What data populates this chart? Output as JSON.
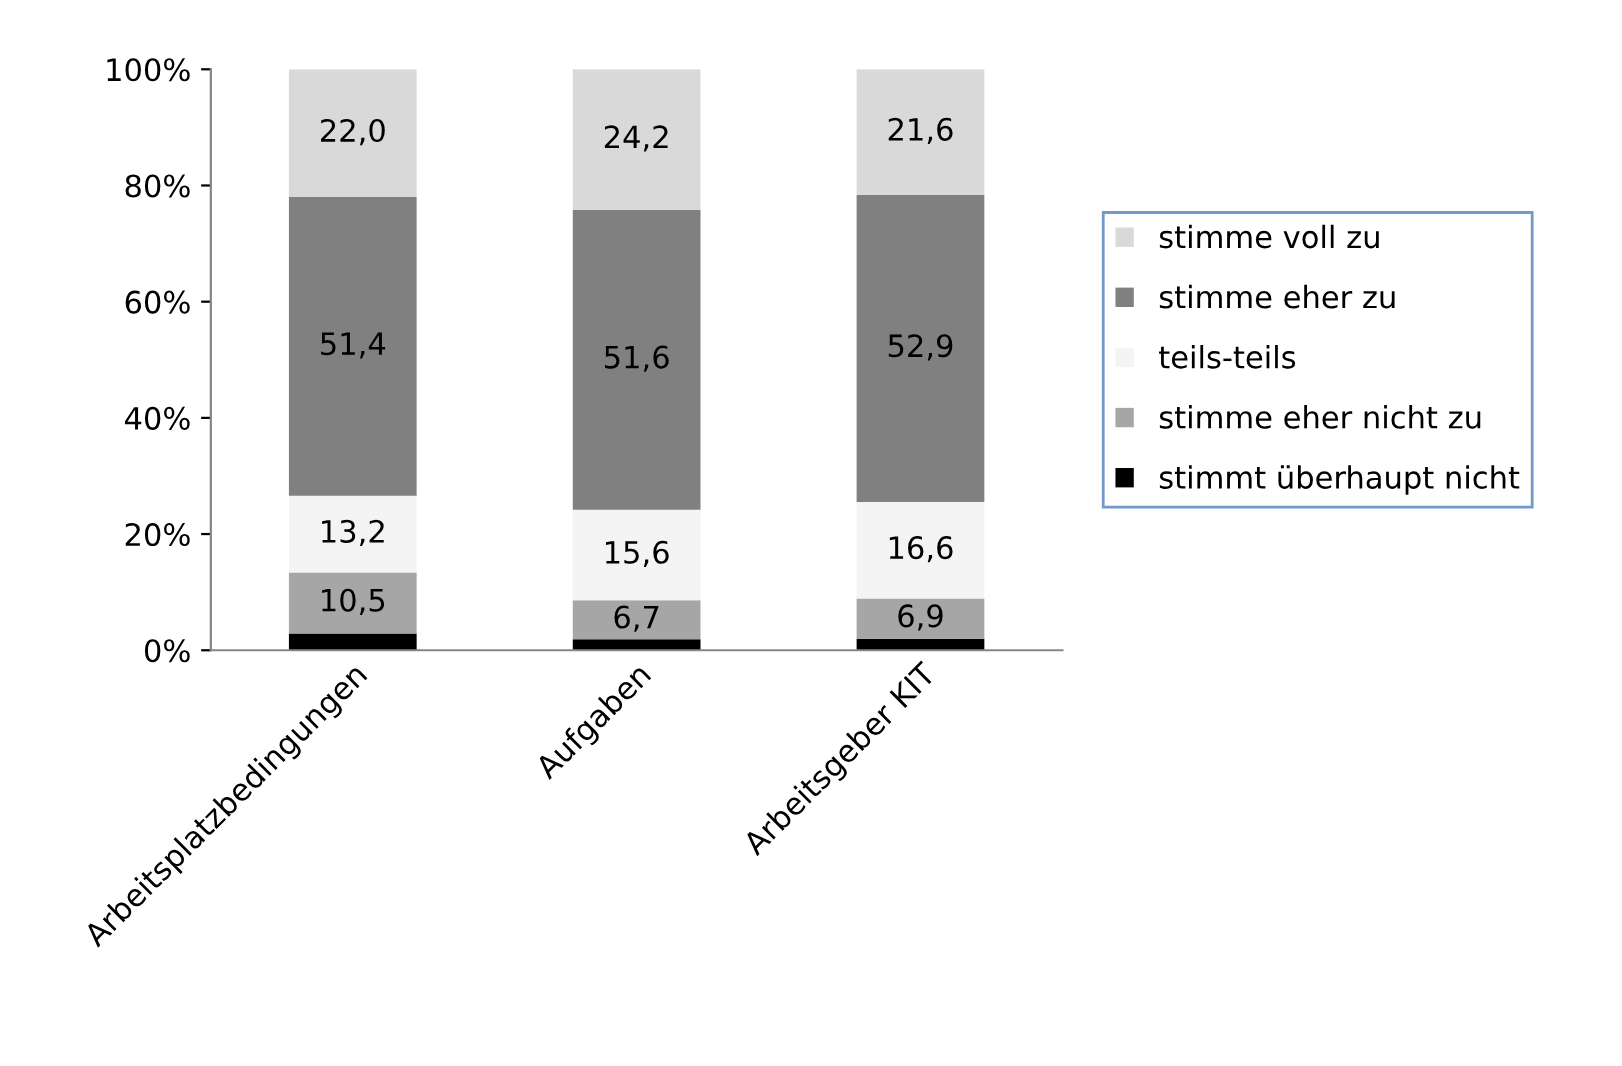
{
  "chart_data": {
    "type": "bar",
    "stacked": true,
    "categories": [
      "Arbeitsplatzbedingungen",
      "Aufgaben",
      "Arbeitsgeber KIT"
    ],
    "series": [
      {
        "name": "stimmt überhaupt nicht",
        "color": "#000000",
        "values": [
          2.9,
          1.9,
          2.0
        ],
        "value_labels": [
          null,
          null,
          null
        ]
      },
      {
        "name": "stimme eher nicht zu",
        "color": "#a6a6a6",
        "values": [
          10.5,
          6.7,
          6.9
        ],
        "value_labels": [
          "10,5",
          "6,7",
          "6,9"
        ]
      },
      {
        "name": "teils-teils",
        "color": "#f4f4f4",
        "values": [
          13.2,
          15.6,
          16.6
        ],
        "value_labels": [
          "13,2",
          "15,6",
          "16,6"
        ]
      },
      {
        "name": "stimme eher zu",
        "color": "#808080",
        "values": [
          51.4,
          51.6,
          52.9
        ],
        "value_labels": [
          "51,4",
          "51,6",
          "52,9"
        ]
      },
      {
        "name": "stimme voll zu",
        "color": "#d9d9d9",
        "values": [
          22.0,
          24.2,
          21.6
        ],
        "value_labels": [
          "22,0",
          "24,2",
          "21,6"
        ]
      }
    ],
    "ylim": [
      0,
      100
    ],
    "yticks": [
      {
        "value": 0,
        "label": "0%"
      },
      {
        "value": 20,
        "label": "20%"
      },
      {
        "value": 40,
        "label": "40%"
      },
      {
        "value": 60,
        "label": "60%"
      },
      {
        "value": 80,
        "label": "80%"
      },
      {
        "value": 100,
        "label": "100%"
      }
    ],
    "grid": false,
    "legend": "right"
  }
}
